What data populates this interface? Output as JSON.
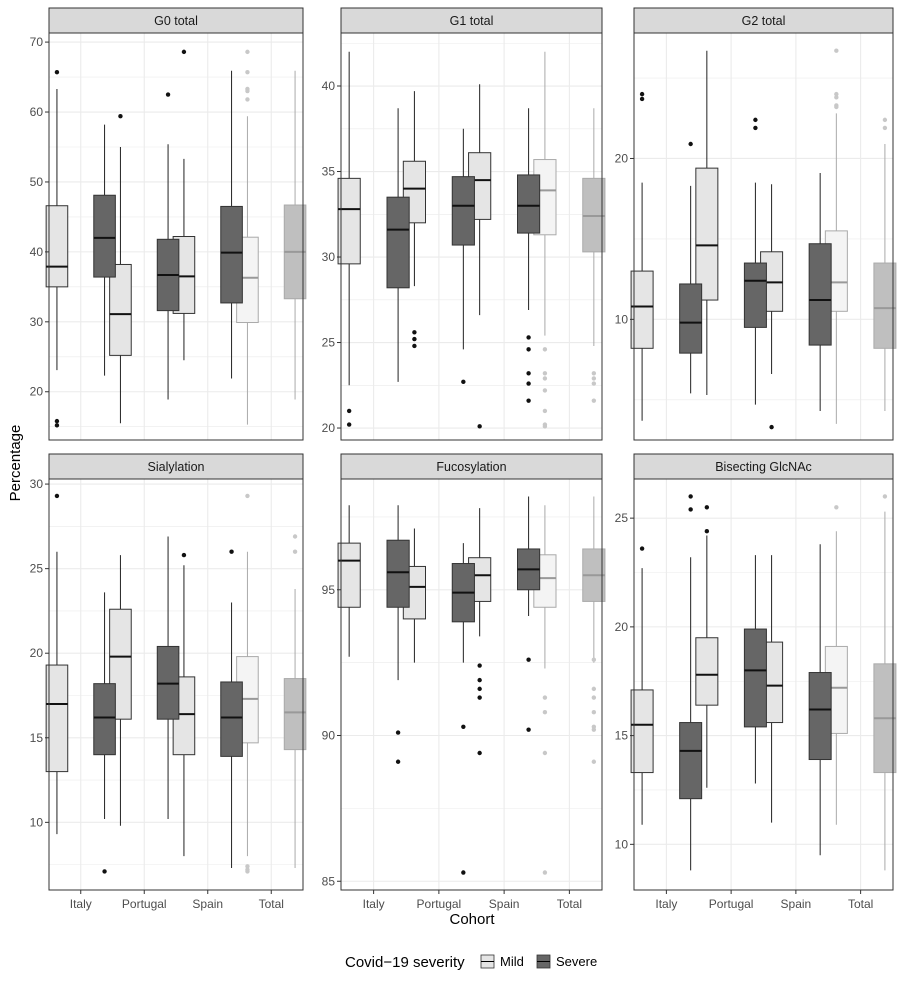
{
  "chart_data": {
    "type": "boxplot",
    "xlabel": "Cohort",
    "ylabel": "Percentage",
    "categories": [
      "Italy",
      "Portugal",
      "Spain",
      "Total"
    ],
    "legend": {
      "title": "Covid−19 severity",
      "entries": [
        "Mild",
        "Severe"
      ],
      "position": "bottom"
    },
    "colors": {
      "Mild": "#e5e5e5",
      "Severe": "#666666",
      "TotalMild": "#f4f4f4",
      "TotalSevere": "#bfbfbf"
    },
    "stats_order": [
      "lower_whisker",
      "q1",
      "median",
      "q3",
      "upper_whisker"
    ],
    "panels": [
      {
        "title": "G0 total",
        "ylim": [
          13.1,
          71.3
        ],
        "yticks": [
          20,
          30,
          40,
          50,
          60,
          70
        ],
        "boxes": {
          "Mild": [
            [
              23.1,
              35.0,
              37.9,
              46.6,
              63.3
            ],
            [
              15.5,
              25.2,
              31.1,
              38.2,
              55.0
            ],
            [
              24.5,
              31.2,
              36.5,
              42.2,
              53.3
            ],
            [
              15.3,
              29.9,
              36.3,
              42.1,
              59.4
            ]
          ],
          "Severe": [
            [
              22.3,
              36.4,
              42.0,
              48.1,
              58.2
            ],
            [
              18.9,
              31.6,
              36.7,
              41.8,
              55.4
            ],
            [
              21.9,
              32.7,
              39.9,
              46.5,
              65.9
            ],
            [
              18.9,
              33.3,
              40.0,
              46.7,
              65.9
            ]
          ]
        },
        "outliers": {
          "Mild": [
            [
              65.7,
              15.8,
              15.2
            ],
            [
              59.4
            ],
            [
              68.6
            ],
            [
              68.6,
              65.7,
              63.3,
              63.0,
              61.8
            ]
          ],
          "Severe": [
            [],
            [
              62.5
            ],
            [],
            []
          ]
        }
      },
      {
        "title": "G1 total",
        "ylim": [
          19.3,
          43.1
        ],
        "yticks": [
          20,
          25,
          30,
          35,
          40
        ],
        "boxes": {
          "Mild": [
            [
              22.5,
              29.6,
              32.8,
              34.6,
              42.0
            ],
            [
              28.3,
              32.0,
              34.0,
              35.6,
              39.7
            ],
            [
              26.6,
              32.2,
              34.5,
              36.1,
              40.1
            ],
            [
              25.4,
              31.3,
              33.9,
              35.7,
              42.0
            ]
          ],
          "Severe": [
            [
              22.7,
              28.2,
              31.6,
              33.5,
              38.7
            ],
            [
              24.6,
              30.7,
              33.0,
              34.7,
              37.5
            ],
            [
              26.9,
              31.4,
              33.0,
              34.8,
              38.7
            ],
            [
              24.8,
              30.3,
              32.4,
              34.6,
              38.7
            ]
          ]
        },
        "outliers": {
          "Mild": [
            [
              21.0,
              20.2
            ],
            [
              25.6,
              25.2,
              24.8
            ],
            [
              20.1
            ],
            [
              24.6,
              23.2,
              22.9,
              22.2,
              21.0,
              20.2,
              20.1
            ]
          ],
          "Severe": [
            [],
            [
              22.7
            ],
            [
              25.3,
              24.6,
              23.2,
              22.6,
              21.6
            ],
            [
              23.2,
              22.9,
              22.6,
              21.6
            ]
          ]
        }
      },
      {
        "title": "G2 total",
        "ylim": [
          2.5,
          27.8
        ],
        "yticks": [
          10,
          20
        ],
        "boxes": {
          "Mild": [
            [
              3.7,
              8.2,
              10.8,
              13.0,
              18.5
            ],
            [
              5.3,
              11.2,
              14.6,
              19.4,
              26.7
            ],
            [
              6.6,
              10.5,
              12.3,
              14.2,
              18.4
            ],
            [
              3.5,
              10.5,
              12.3,
              15.5,
              22.8
            ]
          ],
          "Severe": [
            [
              5.4,
              7.9,
              9.8,
              12.2,
              18.3
            ],
            [
              4.7,
              9.5,
              12.4,
              13.5,
              18.5
            ],
            [
              4.3,
              8.4,
              11.2,
              14.7,
              19.1
            ],
            [
              4.3,
              8.2,
              10.7,
              13.5,
              20.9
            ]
          ]
        },
        "outliers": {
          "Mild": [
            [
              24.0,
              23.7
            ],
            [],
            [
              3.3
            ],
            [
              26.7,
              24.0,
              23.8,
              23.3,
              23.2
            ]
          ],
          "Severe": [
            [
              20.9
            ],
            [
              22.4,
              21.9
            ],
            [],
            [
              22.4,
              21.9
            ]
          ]
        }
      },
      {
        "title": "Sialylation",
        "ylim": [
          6.0,
          30.3
        ],
        "yticks": [
          10,
          15,
          20,
          25,
          30
        ],
        "boxes": {
          "Mild": [
            [
              9.3,
              13.0,
              17.0,
              19.3,
              26.0
            ],
            [
              9.8,
              16.1,
              19.8,
              22.6,
              25.8
            ],
            [
              8.0,
              14.0,
              16.4,
              18.6,
              25.2
            ],
            [
              8.0,
              14.7,
              17.3,
              19.8,
              26.0
            ]
          ],
          "Severe": [
            [
              10.2,
              14.0,
              16.2,
              18.2,
              23.6
            ],
            [
              10.2,
              16.1,
              18.2,
              20.4,
              26.9
            ],
            [
              7.3,
              13.9,
              16.2,
              18.3,
              23.0
            ],
            [
              7.3,
              14.3,
              16.5,
              18.5,
              23.8
            ]
          ]
        },
        "outliers": {
          "Mild": [
            [
              29.3
            ],
            [],
            [
              25.8
            ],
            [
              29.3,
              7.4,
              7.2,
              7.1
            ]
          ],
          "Severe": [
            [
              7.1
            ],
            [],
            [
              26.0
            ],
            [
              26.9,
              26.0
            ]
          ]
        }
      },
      {
        "title": "Fucosylation",
        "ylim": [
          84.7,
          98.8
        ],
        "yticks": [
          85,
          90,
          95
        ],
        "boxes": {
          "Mild": [
            [
              92.7,
              94.4,
              96.0,
              96.6,
              97.9
            ],
            [
              92.5,
              94.0,
              95.1,
              95.8,
              97.1
            ],
            [
              93.4,
              94.6,
              95.5,
              96.1,
              97.8
            ],
            [
              92.3,
              94.4,
              95.4,
              96.2,
              97.9
            ]
          ],
          "Severe": [
            [
              91.9,
              94.4,
              95.6,
              96.7,
              97.9
            ],
            [
              92.5,
              93.9,
              94.9,
              95.9,
              96.6
            ],
            [
              94.1,
              95.0,
              95.7,
              96.4,
              98.2
            ],
            [
              92.5,
              94.6,
              95.5,
              96.4,
              98.2
            ]
          ]
        },
        "outliers": {
          "Mild": [
            [],
            [],
            [
              92.4,
              91.9,
              91.6,
              91.3,
              89.4
            ],
            [
              91.3,
              90.8,
              89.4,
              85.3
            ]
          ],
          "Severe": [
            [
              90.1,
              89.1
            ],
            [
              90.3,
              85.3
            ],
            [
              92.6,
              90.2
            ],
            [
              92.6,
              91.6,
              91.3,
              90.8,
              90.3,
              90.2,
              89.1
            ]
          ]
        }
      },
      {
        "title": "Bisecting GlcNAc",
        "ylim": [
          7.9,
          26.8
        ],
        "yticks": [
          10,
          15,
          20,
          25
        ],
        "boxes": {
          "Mild": [
            [
              10.9,
              13.3,
              15.5,
              17.1,
              22.7
            ],
            [
              12.6,
              16.4,
              17.8,
              19.5,
              24.2
            ],
            [
              11.0,
              15.6,
              17.3,
              19.3,
              23.3
            ],
            [
              10.9,
              15.1,
              17.2,
              19.1,
              24.4
            ]
          ],
          "Severe": [
            [
              8.8,
              12.1,
              14.3,
              15.6,
              23.2
            ],
            [
              12.8,
              15.4,
              18.0,
              19.9,
              23.3
            ],
            [
              9.5,
              13.9,
              16.2,
              17.9,
              23.8
            ],
            [
              8.8,
              13.3,
              15.8,
              18.3,
              25.3
            ]
          ]
        },
        "outliers": {
          "Mild": [
            [
              23.6
            ],
            [
              25.5,
              24.4
            ],
            [],
            [
              25.5
            ]
          ],
          "Severe": [
            [
              26.0,
              25.4
            ],
            [],
            [],
            [
              26.0
            ]
          ]
        }
      }
    ]
  }
}
